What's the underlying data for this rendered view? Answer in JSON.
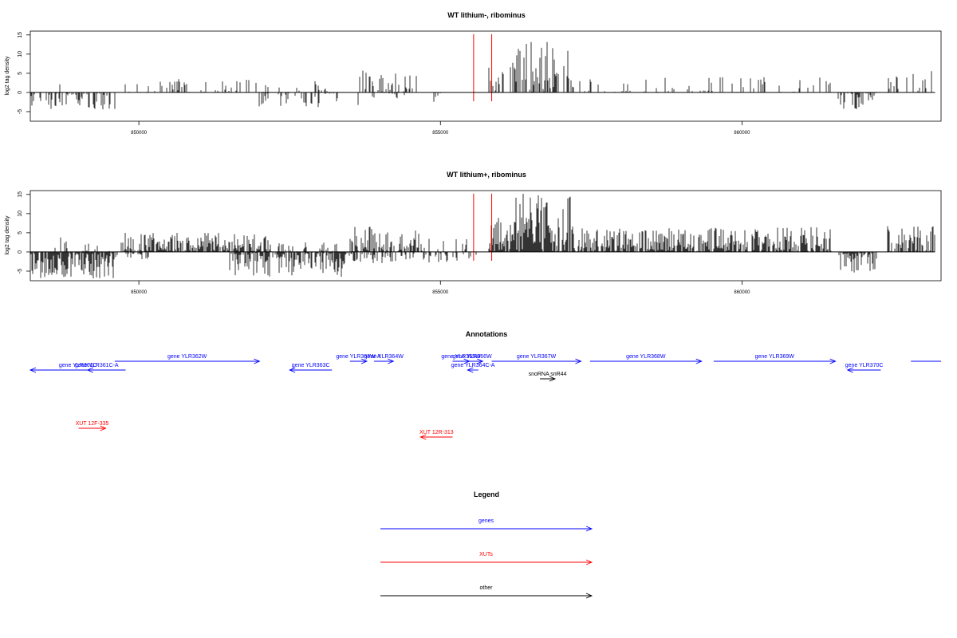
{
  "chart_data": [
    {
      "type": "bar",
      "title": "WT lithium-, ribominus",
      "ylabel": "log2 tag density",
      "xlabel": "",
      "ylim": [
        -7.5,
        16
      ],
      "yticks": [
        -5,
        0,
        5,
        10,
        15
      ],
      "xlim": [
        848200,
        863300
      ],
      "xticks": [
        850000,
        855000,
        860000
      ],
      "baseline": 0,
      "red_markers": [
        855550,
        855850
      ],
      "red_marker_top": 15.2,
      "positive_regions": [
        {
          "start": 848500,
          "end": 848700,
          "max": 2.5,
          "density": 0.05,
          "seed": 3
        },
        {
          "start": 849780,
          "end": 851950,
          "max": 3.5,
          "density": 0.3,
          "seed": 4
        },
        {
          "start": 852000,
          "end": 853300,
          "max": 3.0,
          "density": 0.2,
          "seed": 5
        },
        {
          "start": 853600,
          "end": 854600,
          "max": 6.0,
          "density": 0.4,
          "seed": 6
        },
        {
          "start": 854900,
          "end": 855500,
          "max": 3.5,
          "density": 0.05,
          "seed": 7
        },
        {
          "start": 855800,
          "end": 856200,
          "max": 7.5,
          "density": 0.45,
          "seed": 8
        },
        {
          "start": 856200,
          "end": 857200,
          "max": 13.5,
          "density": 0.6,
          "seed": 9
        },
        {
          "start": 857200,
          "end": 861500,
          "max": 4.0,
          "density": 0.25,
          "seed": 10
        },
        {
          "start": 862400,
          "end": 863200,
          "max": 5.8,
          "density": 0.35,
          "seed": 11
        }
      ],
      "negative_regions": [
        {
          "start": 848200,
          "end": 849620,
          "min": -4.5,
          "density": 0.45,
          "seed": 12
        },
        {
          "start": 851950,
          "end": 853300,
          "min": -4.3,
          "density": 0.35,
          "seed": 13
        },
        {
          "start": 853600,
          "end": 855000,
          "min": -3.5,
          "density": 0.15,
          "seed": 14
        },
        {
          "start": 861600,
          "end": 862250,
          "min": -4.5,
          "density": 0.6,
          "seed": 15
        }
      ]
    },
    {
      "type": "bar",
      "title": "WT lithium+, ribominus",
      "ylabel": "log2 tag density",
      "xlabel": "",
      "ylim": [
        -7.5,
        16
      ],
      "yticks": [
        -5,
        0,
        5,
        10,
        15
      ],
      "xlim": [
        848200,
        863300
      ],
      "xticks": [
        850000,
        855000,
        860000
      ],
      "baseline": 0,
      "red_markers": [
        855550,
        855850
      ],
      "red_marker_top": 15.2,
      "positive_regions": [
        {
          "start": 848500,
          "end": 849700,
          "max": 3.8,
          "density": 0.2,
          "seed": 21
        },
        {
          "start": 849700,
          "end": 852200,
          "max": 5.0,
          "density": 0.85,
          "seed": 22
        },
        {
          "start": 852200,
          "end": 853300,
          "max": 3.0,
          "density": 0.4,
          "seed": 23
        },
        {
          "start": 853500,
          "end": 854700,
          "max": 7.0,
          "density": 0.8,
          "seed": 24
        },
        {
          "start": 854700,
          "end": 855500,
          "max": 3.5,
          "density": 0.2,
          "seed": 25
        },
        {
          "start": 855800,
          "end": 856200,
          "max": 9.0,
          "density": 0.9,
          "seed": 26
        },
        {
          "start": 856200,
          "end": 857200,
          "max": 15.2,
          "density": 0.95,
          "seed": 27
        },
        {
          "start": 857200,
          "end": 861500,
          "max": 6.5,
          "density": 0.9,
          "seed": 28
        },
        {
          "start": 862400,
          "end": 863200,
          "max": 7.0,
          "density": 0.85,
          "seed": 29
        }
      ],
      "negative_regions": [
        {
          "start": 848200,
          "end": 849600,
          "min": -7.0,
          "density": 0.95,
          "seed": 31
        },
        {
          "start": 849600,
          "end": 850200,
          "min": -2.5,
          "density": 0.4,
          "seed": 32
        },
        {
          "start": 851500,
          "end": 853400,
          "min": -6.5,
          "density": 0.8,
          "seed": 33
        },
        {
          "start": 853400,
          "end": 855600,
          "min": -3.0,
          "density": 0.4,
          "seed": 34
        },
        {
          "start": 861600,
          "end": 862250,
          "min": -5.5,
          "density": 0.9,
          "seed": 35
        }
      ]
    }
  ],
  "annotations": {
    "title": "Annotations",
    "colors": {
      "genes": "#0000ff",
      "XUTs": "#ff0000",
      "other": "#000000"
    },
    "features": [
      {
        "label": "gene YLR361C",
        "start": 848200,
        "end": 849780,
        "dir": "<",
        "row": 1,
        "type": "genes"
      },
      {
        "label": "gene YLR361C-A",
        "start": 849150,
        "end": 849450,
        "dir": "<",
        "row": 1,
        "type": "genes"
      },
      {
        "label": "gene YLR362W",
        "start": 849600,
        "end": 852000,
        "dir": ">",
        "row": 0,
        "type": "genes"
      },
      {
        "label": "gene YLR363C",
        "start": 852500,
        "end": 853200,
        "dir": "<",
        "row": 1,
        "type": "genes"
      },
      {
        "label": "gene YLR363W-A",
        "start": 853500,
        "end": 853780,
        "dir": ">",
        "row": 0,
        "type": "genes"
      },
      {
        "label": "gene YLR364W",
        "start": 853900,
        "end": 854220,
        "dir": ">",
        "row": 0,
        "type": "genes"
      },
      {
        "label": "gene YLR365W",
        "start": 855200,
        "end": 855480,
        "dir": ">",
        "row": 0,
        "type": "genes"
      },
      {
        "label": "gene YLR366W",
        "start": 855350,
        "end": 855700,
        "dir": ">",
        "row": 0,
        "type": "genes"
      },
      {
        "label": "gene YLR364C-A",
        "start": 855450,
        "end": 855630,
        "dir": "<",
        "row": 1,
        "type": "genes"
      },
      {
        "label": "gene YLR367W",
        "start": 855850,
        "end": 857330,
        "dir": ">",
        "row": 0,
        "type": "genes"
      },
      {
        "label": "gene YLR368W",
        "start": 857480,
        "end": 859330,
        "dir": ">",
        "row": 0,
        "type": "genes"
      },
      {
        "label": "gene YLR369W",
        "start": 859530,
        "end": 861550,
        "dir": ">",
        "row": 0,
        "type": "genes"
      },
      {
        "label": "gene YLR370C",
        "start": 861750,
        "end": 862300,
        "dir": "<",
        "row": 1,
        "type": "genes"
      },
      {
        "label": "",
        "start": 862800,
        "end": 863300,
        "dir": "-",
        "row": 0,
        "type": "genes"
      },
      {
        "label": "snoRNA snR44",
        "start": 856650,
        "end": 856900,
        "dir": ">",
        "row": 2,
        "type": "other"
      },
      {
        "label": "XUT 12F-335",
        "start": 849000,
        "end": 849450,
        "dir": ">",
        "row": 3,
        "type": "XUTs"
      },
      {
        "label": "XUT 12R-313",
        "start": 854670,
        "end": 855200,
        "dir": "<",
        "row": 4,
        "type": "XUTs"
      }
    ]
  },
  "legend": {
    "title": "Legend",
    "entries": [
      {
        "label": "genes",
        "color": "#0000ff"
      },
      {
        "label": "XUTs",
        "color": "#ff0000"
      },
      {
        "label": "other",
        "color": "#000000"
      }
    ]
  }
}
